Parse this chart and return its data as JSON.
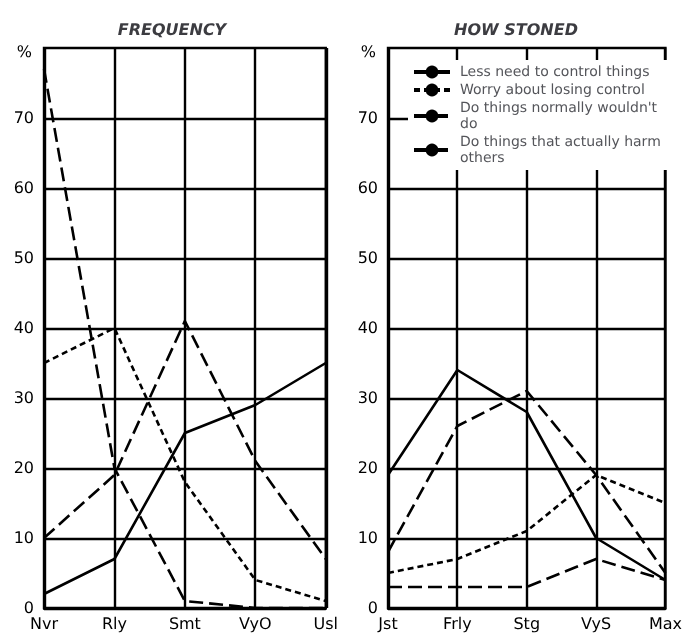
{
  "chart_data": [
    {
      "type": "line",
      "title": "FREQUENCY",
      "ylabel": "%",
      "categories": [
        "Nvr",
        "Rly",
        "Smt",
        "VyO",
        "Usl"
      ],
      "ylim": [
        0,
        80
      ],
      "yticks": [
        0,
        10,
        20,
        30,
        40,
        50,
        60,
        70
      ],
      "grid": true,
      "legend": false,
      "marker": "none",
      "series": [
        {
          "color": "#000000",
          "line_style": "solid",
          "values": [
            2,
            7,
            25,
            29,
            35
          ]
        },
        {
          "color": "#000000",
          "line_style": "dotted",
          "values": [
            35,
            40,
            18,
            4,
            1
          ]
        },
        {
          "color": "#000000",
          "line_style": "dashed",
          "values": [
            10,
            19,
            41,
            21,
            7
          ]
        },
        {
          "color": "#000000",
          "line_style": "dashed",
          "values": [
            77,
            20,
            1,
            0,
            0
          ]
        }
      ]
    },
    {
      "type": "line",
      "title": "HOW STONED",
      "ylabel": "%",
      "categories": [
        "Jst",
        "Frly",
        "Stg",
        "VyS",
        "Max"
      ],
      "ylim": [
        0,
        80
      ],
      "yticks": [
        0,
        10,
        20,
        30,
        40,
        50,
        60,
        70
      ],
      "grid": true,
      "legend": "top",
      "marker": "none",
      "series": [
        {
          "name": "Less need to control things",
          "color": "#000000",
          "line_style": "solid",
          "values": [
            19,
            34,
            28,
            10,
            4
          ]
        },
        {
          "name": "Worry about losing control",
          "color": "#000000",
          "line_style": "dotted",
          "values": [
            5,
            7,
            11,
            19,
            15
          ]
        },
        {
          "name": "Do things normally wouldn't do",
          "color": "#000000",
          "line_style": "dashed",
          "values": [
            8,
            26,
            31,
            19,
            5
          ]
        },
        {
          "name": "Do things that actually harm others",
          "color": "#000000",
          "line_style": "dashed",
          "values": [
            3,
            3,
            3,
            7,
            4
          ]
        }
      ]
    }
  ]
}
